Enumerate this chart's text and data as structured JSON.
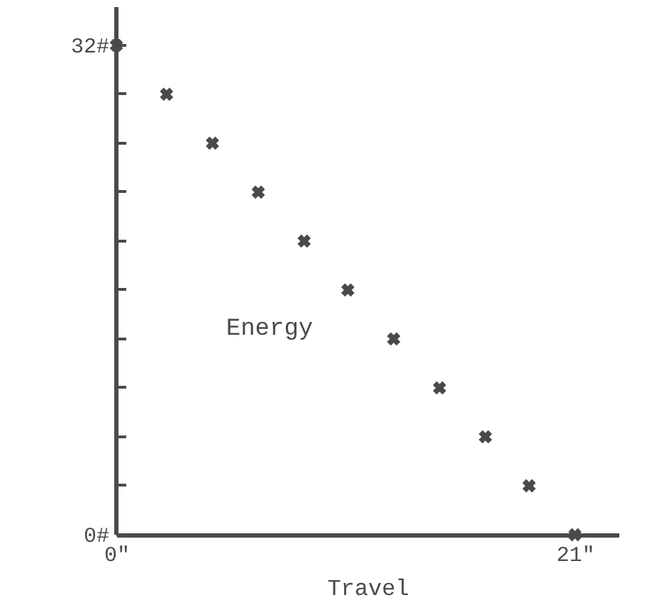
{
  "chart_data": {
    "type": "scatter",
    "xlabel": "Travel",
    "annotations": [
      "Energy"
    ],
    "x": [
      0,
      2.3,
      4.4,
      6.5,
      8.6,
      10.6,
      12.7,
      14.8,
      16.9,
      18.9,
      21
    ],
    "values": [
      32,
      28.8,
      25.6,
      22.4,
      19.2,
      16,
      12.8,
      9.6,
      6.4,
      3.2,
      0
    ],
    "color": "#4a4a4a",
    "marker": "cross",
    "grid": false,
    "xlim": [
      0,
      23
    ],
    "ylim": [
      0,
      34.5
    ],
    "xticks": [
      {
        "value": 0,
        "label": "0\""
      },
      {
        "value": 21,
        "label": "21\""
      }
    ],
    "yticks": [
      {
        "value": 0,
        "label": "0#"
      },
      {
        "value": 3.2,
        "label": null
      },
      {
        "value": 6.4,
        "label": null
      },
      {
        "value": 9.6,
        "label": null
      },
      {
        "value": 12.8,
        "label": null
      },
      {
        "value": 16,
        "label": null
      },
      {
        "value": 19.2,
        "label": null
      },
      {
        "value": 22.4,
        "label": null
      },
      {
        "value": 25.6,
        "label": null
      },
      {
        "value": 28.8,
        "label": null
      },
      {
        "value": 32,
        "label": "32#"
      }
    ]
  }
}
